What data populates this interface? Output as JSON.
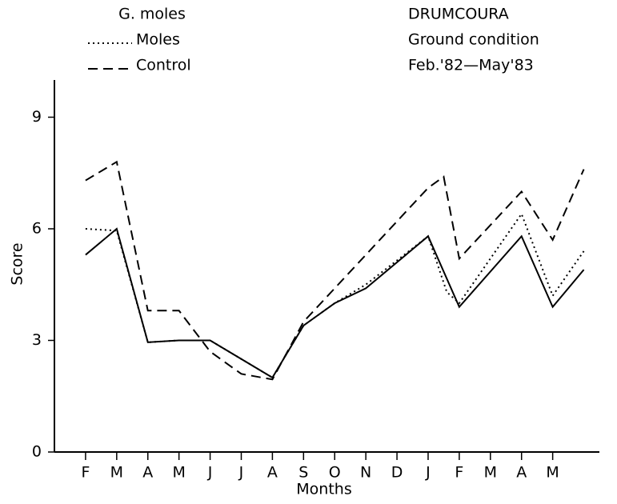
{
  "chart_data": {
    "type": "line",
    "title": "DRUMCOURA",
    "subtitle": [
      "Ground condition",
      "Feb.'82—May'83"
    ],
    "legend_title": "G. moles",
    "x_label": "Months",
    "y_label": "Score",
    "xlim": [
      -1,
      16.5
    ],
    "ylim": [
      0,
      10
    ],
    "yticks": [
      0,
      3,
      6,
      9
    ],
    "xticks": [
      {
        "value": 0,
        "label": "F"
      },
      {
        "value": 1,
        "label": "M"
      },
      {
        "value": 2,
        "label": "A"
      },
      {
        "value": 3,
        "label": "M"
      },
      {
        "value": 4,
        "label": "J"
      },
      {
        "value": 5,
        "label": "J"
      },
      {
        "value": 6,
        "label": "A"
      },
      {
        "value": 7,
        "label": "S"
      },
      {
        "value": 8,
        "label": "O"
      },
      {
        "value": 9,
        "label": "N"
      },
      {
        "value": 10,
        "label": "D"
      },
      {
        "value": 11,
        "label": "J"
      },
      {
        "value": 12,
        "label": "F"
      },
      {
        "value": 13,
        "label": "M"
      },
      {
        "value": 14,
        "label": "A"
      },
      {
        "value": 15,
        "label": "M"
      }
    ],
    "series": [
      {
        "name": "Moles",
        "style": "dotted",
        "color": "#000",
        "x": [
          0,
          1,
          2,
          3,
          4,
          5,
          6,
          7,
          8,
          9,
          11,
          11.6,
          12,
          14,
          15,
          16
        ],
        "values": [
          6.0,
          5.95,
          2.95,
          3.0,
          3.0,
          2.5,
          2.0,
          3.4,
          4.0,
          4.5,
          5.8,
          4.3,
          4.0,
          6.4,
          4.2,
          5.4
        ]
      },
      {
        "name": "Control",
        "style": "dashed",
        "color": "#000",
        "x": [
          0,
          1,
          2,
          3,
          4,
          5,
          6,
          7,
          11,
          11.5,
          12,
          14,
          15,
          16
        ],
        "values": [
          7.3,
          7.8,
          3.8,
          3.8,
          2.7,
          2.1,
          1.95,
          3.5,
          7.1,
          7.4,
          5.2,
          7.0,
          5.7,
          7.6
        ]
      },
      {
        "style": "solid",
        "color": "#000",
        "x": [
          0,
          1,
          2,
          3,
          4,
          5,
          6,
          7,
          8,
          9,
          11,
          12,
          14,
          15,
          16
        ],
        "values": [
          5.3,
          6.0,
          2.95,
          3.0,
          3.0,
          2.5,
          2.0,
          3.4,
          4.0,
          4.4,
          5.8,
          3.9,
          5.8,
          3.9,
          4.9
        ]
      }
    ]
  }
}
